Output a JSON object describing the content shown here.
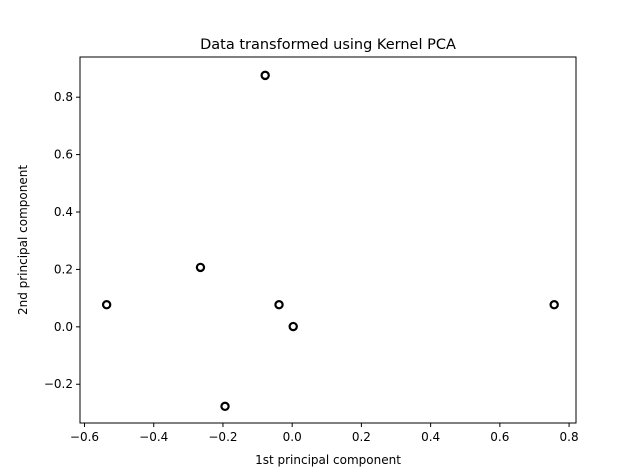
{
  "chart_data": {
    "type": "scatter",
    "title": "Data transformed using Kernel PCA",
    "xlabel": "1st principal component",
    "ylabel": "2nd principal component",
    "xlim": [
      -0.613,
      0.82
    ],
    "ylim": [
      -0.335,
      0.94
    ],
    "xticks": [
      -0.6,
      -0.4,
      -0.2,
      0.0,
      0.2,
      0.4,
      0.6,
      0.8
    ],
    "xtick_labels": [
      "−0.6",
      "−0.4",
      "−0.2",
      "0.0",
      "0.2",
      "0.4",
      "0.6",
      "0.8"
    ],
    "yticks": [
      -0.2,
      0.0,
      0.2,
      0.4,
      0.6,
      0.8
    ],
    "ytick_labels": [
      "−0.2",
      "0.0",
      "0.2",
      "0.4",
      "0.6",
      "0.8"
    ],
    "grid": false,
    "marker": "hollow-circle",
    "series": [
      {
        "color": "#000000",
        "x": [
          -0.536,
          -0.265,
          -0.078,
          -0.038,
          0.003,
          0.757,
          -0.194
        ],
        "y": [
          0.077,
          0.207,
          0.876,
          0.077,
          0.001,
          0.077,
          -0.277
        ]
      }
    ]
  }
}
